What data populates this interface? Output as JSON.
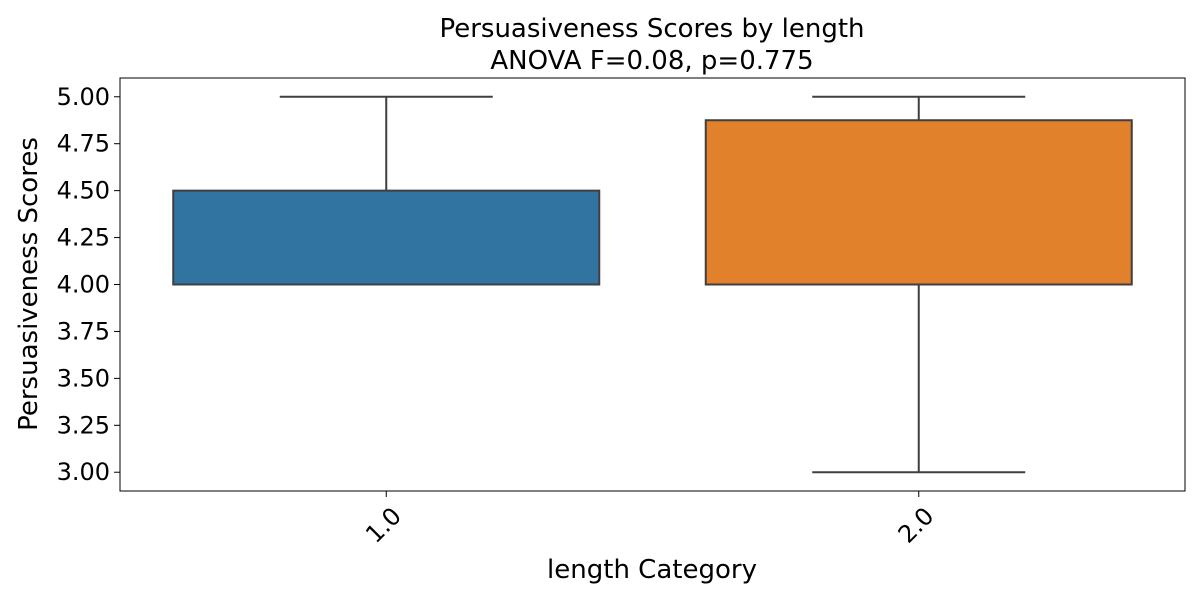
{
  "chart_data": {
    "type": "box",
    "title": "Persuasiveness Scores by length",
    "subtitle": "ANOVA F=0.08, p=0.775",
    "xlabel": "length Category",
    "ylabel": "Persuasiveness Scores",
    "ylim": [
      2.9,
      5.1
    ],
    "yticks": [
      "3.00",
      "3.25",
      "3.50",
      "3.75",
      "4.00",
      "4.25",
      "4.50",
      "4.75",
      "5.00"
    ],
    "categories": [
      "1.0",
      "2.0"
    ],
    "boxes": [
      {
        "category": "1.0",
        "whisker_low": 4.0,
        "q1": 4.0,
        "median": 4.0,
        "q3": 4.5,
        "whisker_high": 5.0,
        "color": "#3274a1"
      },
      {
        "category": "2.0",
        "whisker_low": 3.0,
        "q1": 4.0,
        "median": 4.0,
        "q3": 4.875,
        "whisker_high": 5.0,
        "color": "#e1812c"
      }
    ],
    "grid": false,
    "legend": "none"
  }
}
